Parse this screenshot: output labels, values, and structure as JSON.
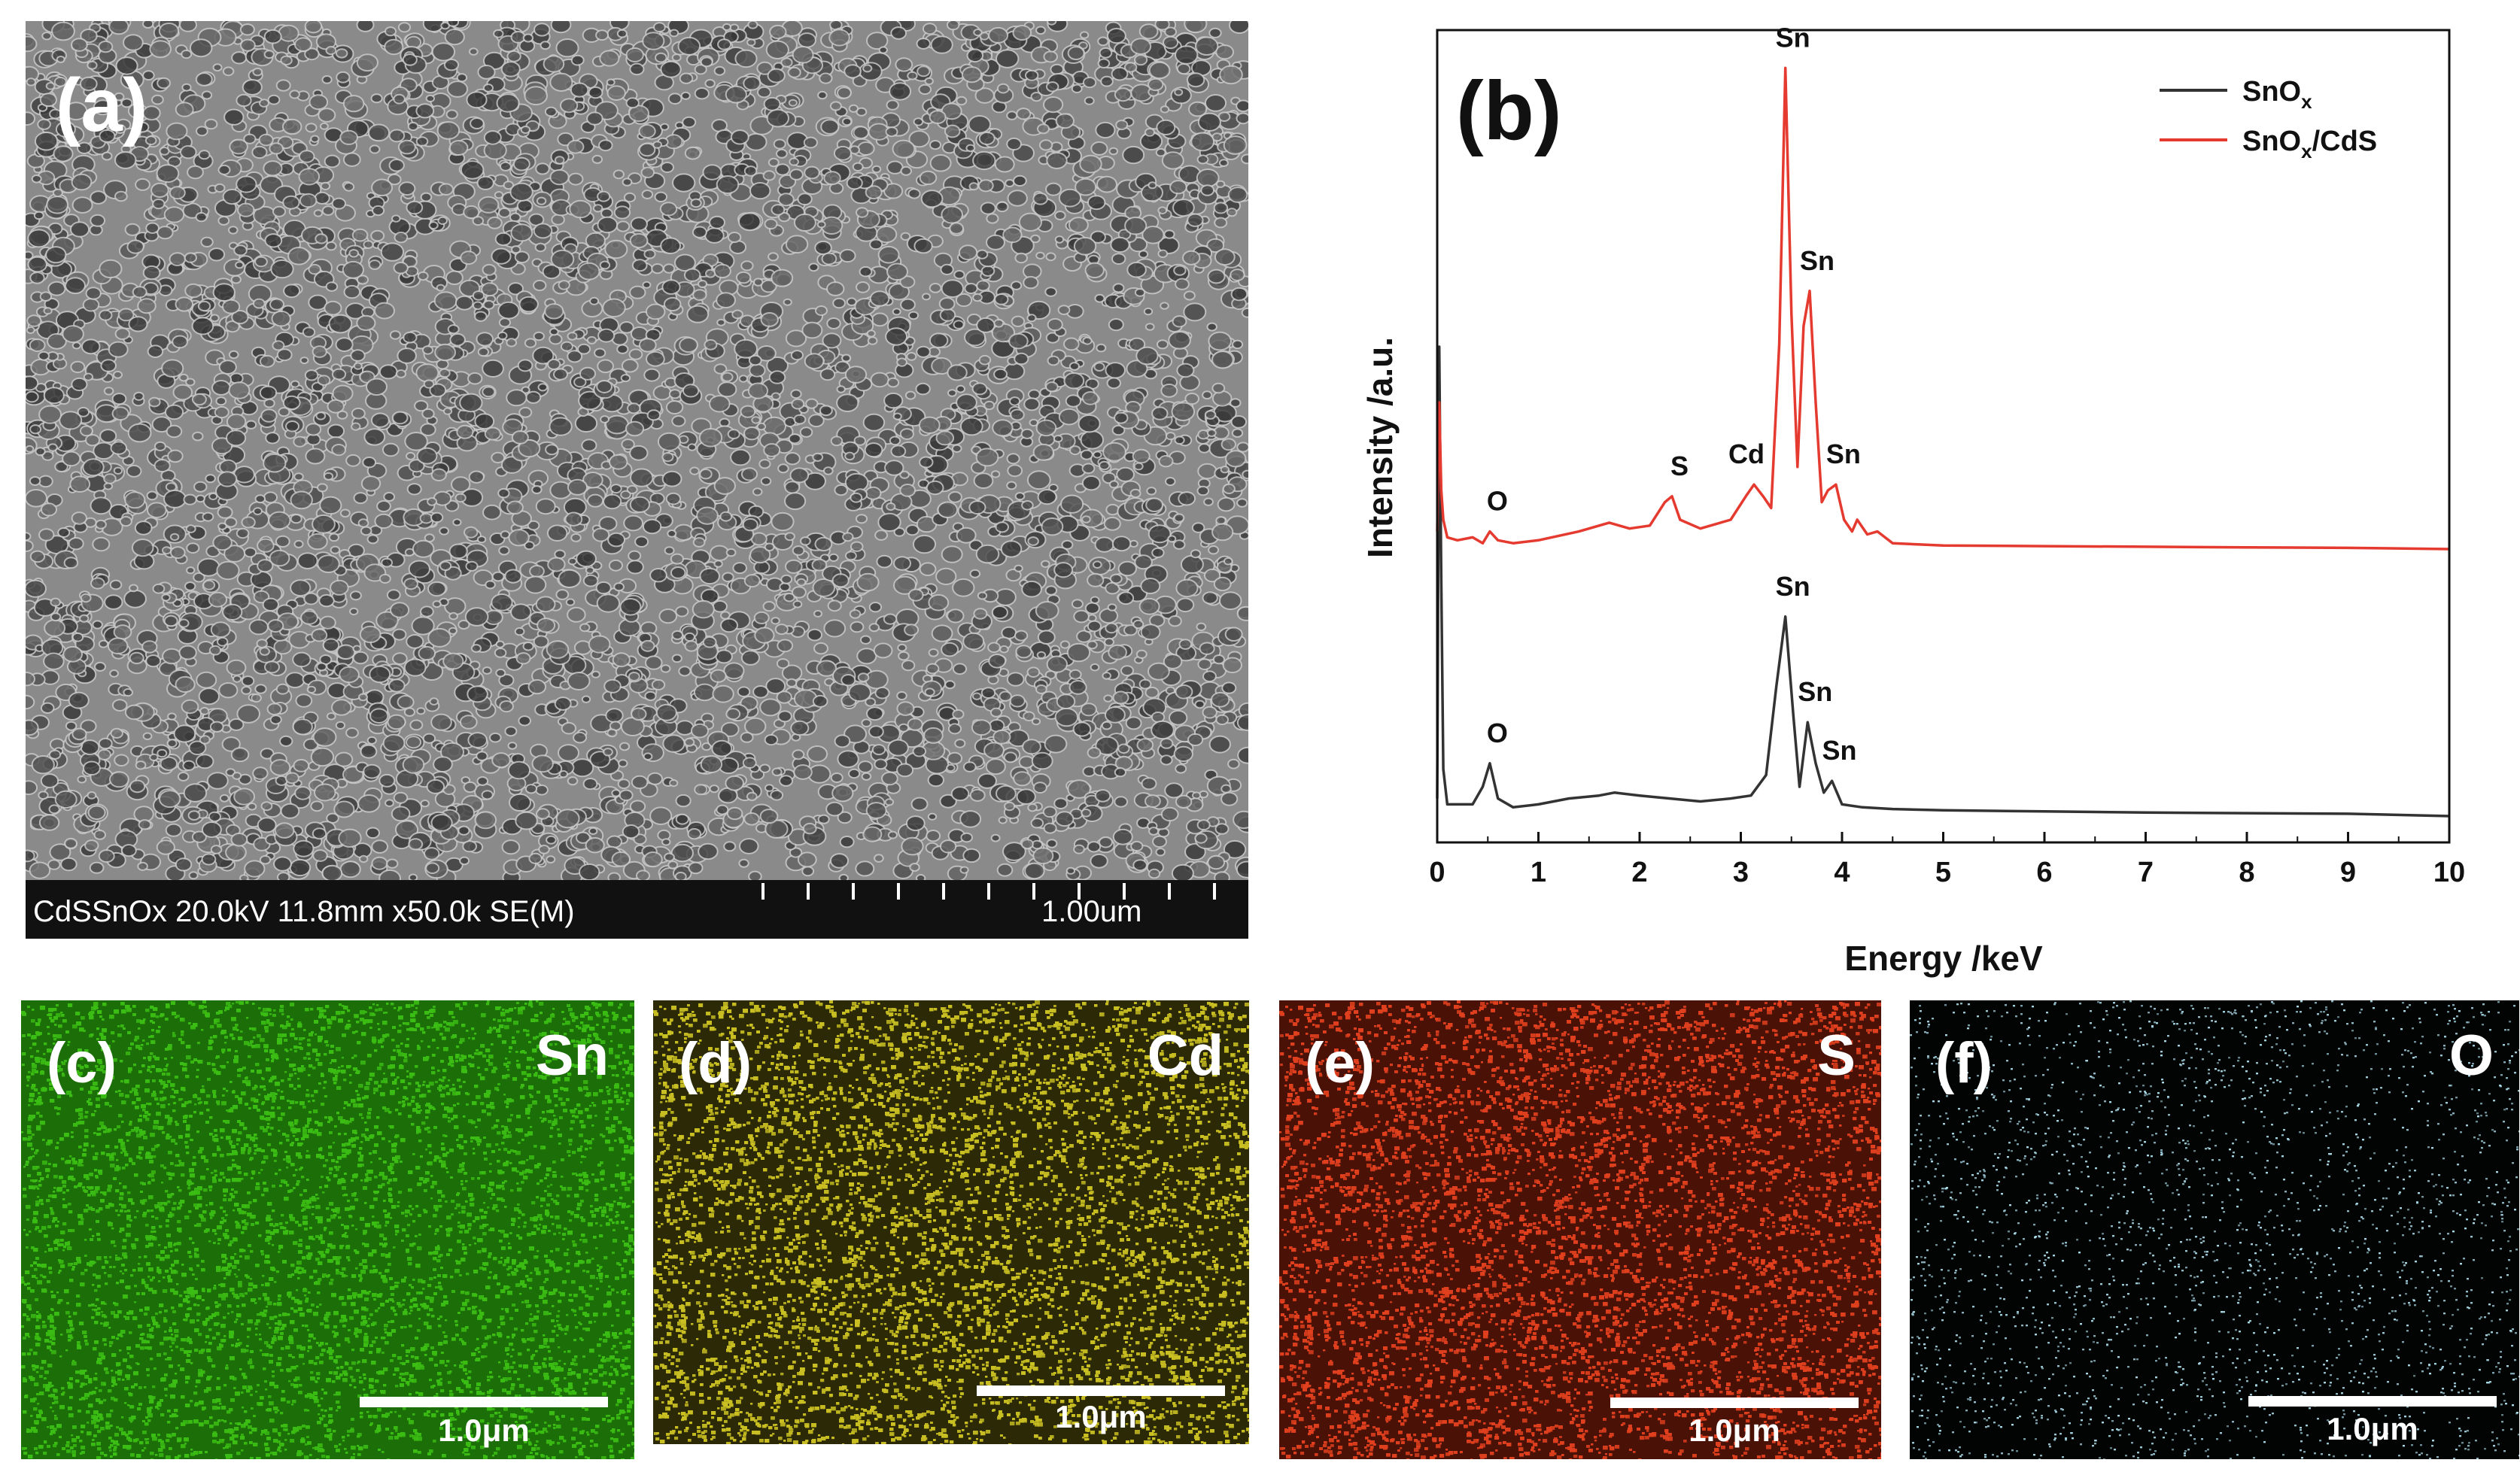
{
  "panels": {
    "a": {
      "label": "(a)",
      "info_text": "CdSSnOx 20.0kV 11.8mm x50.0k SE(M)",
      "scale_text": "1.00um"
    },
    "b": {
      "label": "(b)"
    },
    "maps": [
      {
        "label": "(c)",
        "element": "Sn",
        "scale_text": "1.0μm",
        "color": "#3bbd14",
        "bg": "#1c6e08"
      },
      {
        "label": "(d)",
        "element": "Cd",
        "scale_text": "1.0μm",
        "color": "#c9bf23",
        "bg": "#2b2906"
      },
      {
        "label": "(e)",
        "element": "S",
        "scale_text": "1.0μm",
        "color": "#e0401e",
        "bg": "#4a1107"
      },
      {
        "label": "(f)",
        "element": "O",
        "scale_text": "1.0μm",
        "color": "#a7d8e6",
        "bg": "#020303"
      }
    ]
  },
  "chart_data": {
    "type": "line",
    "xlabel": "Energy /keV",
    "ylabel": "Intensity /a.u.",
    "xlim": [
      0,
      10
    ],
    "x_ticks": [
      "0",
      "1",
      "2",
      "3",
      "4",
      "5",
      "6",
      "7",
      "8",
      "9",
      "10"
    ],
    "y_ticks_shown": false,
    "legend_position": "top-right",
    "colors": {
      "SnOx": "#333333",
      "SnOx/CdS": "#e53a2f"
    },
    "series": [
      {
        "name": "SnOx",
        "legend_text": "SnO",
        "legend_sub": "x",
        "legend_suffix": "",
        "x": [
          0.0,
          0.02,
          0.04,
          0.06,
          0.1,
          0.2,
          0.35,
          0.45,
          0.52,
          0.6,
          0.75,
          1.0,
          1.3,
          1.6,
          1.75,
          2.0,
          2.3,
          2.6,
          2.9,
          3.1,
          3.25,
          3.35,
          3.44,
          3.52,
          3.58,
          3.66,
          3.74,
          3.82,
          3.9,
          4.0,
          4.2,
          4.5,
          5.0,
          6.0,
          7.0,
          8.0,
          9.0,
          10.0
        ],
        "y": [
          0.03,
          0.8,
          0.4,
          0.08,
          0.02,
          0.02,
          0.02,
          0.05,
          0.09,
          0.03,
          0.015,
          0.02,
          0.03,
          0.035,
          0.04,
          0.035,
          0.03,
          0.025,
          0.03,
          0.035,
          0.07,
          0.22,
          0.34,
          0.17,
          0.05,
          0.16,
          0.09,
          0.04,
          0.06,
          0.02,
          0.015,
          0.012,
          0.01,
          0.008,
          0.006,
          0.005,
          0.004,
          0.0
        ],
        "peaks": [
          {
            "label": "O",
            "x": 0.52
          },
          {
            "label": "Sn",
            "x": 3.44
          },
          {
            "label": "Sn",
            "x": 3.66
          },
          {
            "label": "Sn",
            "x": 3.9
          }
        ]
      },
      {
        "name": "SnOx/CdS",
        "legend_text": "SnO",
        "legend_sub": "x",
        "legend_suffix": "/CdS",
        "x": [
          0.0,
          0.02,
          0.04,
          0.06,
          0.1,
          0.2,
          0.35,
          0.45,
          0.52,
          0.6,
          0.75,
          1.0,
          1.4,
          1.7,
          1.9,
          2.1,
          2.25,
          2.32,
          2.4,
          2.6,
          2.9,
          3.05,
          3.13,
          3.22,
          3.3,
          3.38,
          3.44,
          3.5,
          3.56,
          3.62,
          3.68,
          3.74,
          3.8,
          3.86,
          3.94,
          4.02,
          4.1,
          4.15,
          4.25,
          4.35,
          4.5,
          5.0,
          6.0,
          7.0,
          8.0,
          9.0,
          10.0
        ],
        "y": [
          0.03,
          0.25,
          0.1,
          0.05,
          0.02,
          0.015,
          0.02,
          0.01,
          0.03,
          0.015,
          0.01,
          0.015,
          0.03,
          0.045,
          0.035,
          0.04,
          0.08,
          0.09,
          0.05,
          0.035,
          0.05,
          0.09,
          0.11,
          0.09,
          0.07,
          0.35,
          0.82,
          0.4,
          0.14,
          0.38,
          0.44,
          0.25,
          0.08,
          0.1,
          0.11,
          0.05,
          0.03,
          0.05,
          0.025,
          0.03,
          0.01,
          0.006,
          0.005,
          0.004,
          0.003,
          0.002,
          0.0
        ],
        "peaks": [
          {
            "label": "O",
            "x": 0.52
          },
          {
            "label": "S",
            "x": 2.32
          },
          {
            "label": "Cd",
            "x": 3.13
          },
          {
            "label": "Sn",
            "x": 3.44
          },
          {
            "label": "Sn",
            "x": 3.68
          },
          {
            "label": "Sn",
            "x": 3.94
          }
        ]
      }
    ]
  }
}
